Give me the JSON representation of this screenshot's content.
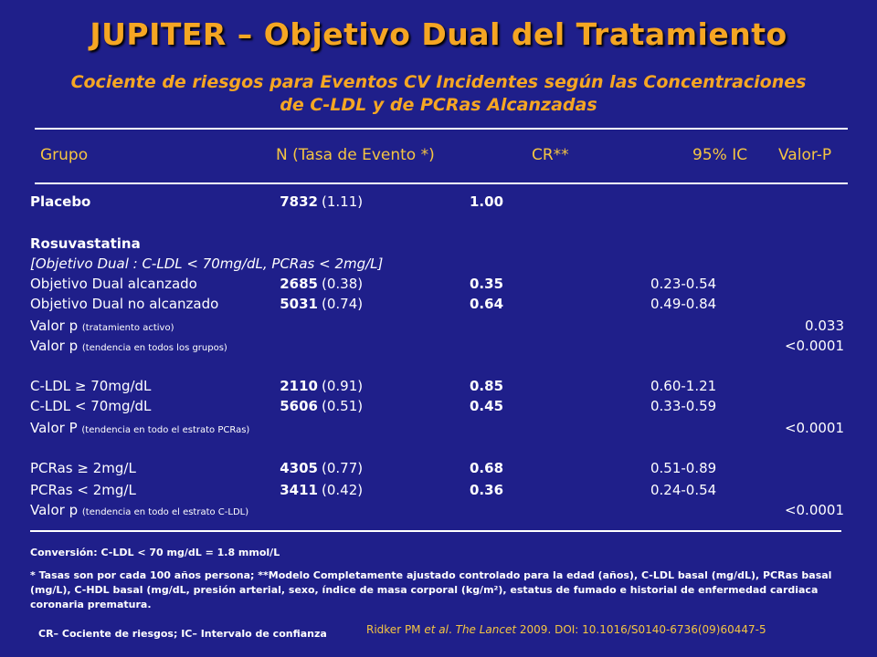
{
  "title": "JUPITER – Objetivo Dual del Tratamiento",
  "subtitle_line1": "Cociente de riesgos para Eventos CV Incidentes según las Concentraciones",
  "subtitle_line2": "de C-LDL y de PCRas Alcanzadas",
  "header": {
    "grupo": "Grupo",
    "n": "N (Tasa de Evento *)",
    "cr": "CR**",
    "ic": "95% IC",
    "p": "Valor-P"
  },
  "rows": {
    "placebo": {
      "group": "Placebo",
      "n": "7832",
      "rate": "(1.11)",
      "hr": "1.00"
    },
    "rosu_title": "Rosuvastatina",
    "rosu_sub": "[Objetivo Dual : C-LDL < 70mg/dL, PCRas < 2mg/L]",
    "dual_ok": {
      "group": "Objetivo Dual alcanzado",
      "n": "2685",
      "rate": "(0.38)",
      "hr": "0.35",
      "ci": "0.23-0.54"
    },
    "dual_no": {
      "group": "Objetivo Dual no alcanzado",
      "n": "5031",
      "rate": "(0.74)",
      "hr": "0.64",
      "ci": "0.49-0.84"
    },
    "p_active": {
      "label": "Valor p",
      "note": "(tratamiento activo)",
      "p": "0.033"
    },
    "p_trend_all": {
      "label": "Valor p",
      "note": "(tendencia en todos los grupos)",
      "p": "<0.0001"
    },
    "ldl_hi": {
      "group": "C-LDL ≥ 70mg/dL",
      "n": "2110",
      "rate": "(0.91)",
      "hr": "0.85",
      "ci": "0.60-1.21"
    },
    "ldl_lo": {
      "group": "C-LDL < 70mg/dL",
      "n": "5606",
      "rate": "(0.51)",
      "hr": "0.45",
      "ci": "0.33-0.59"
    },
    "p_trend_pcr": {
      "label": "Valor P",
      "note": "(tendencia en todo el estrato PCRas)",
      "p": "<0.0001"
    },
    "pcr_hi": {
      "group": "PCRas ≥ 2mg/L",
      "n": "4305",
      "rate": "(0.77)",
      "hr": "0.68",
      "ci": "0.51-0.89"
    },
    "pcr_lo": {
      "group": "PCRas < 2mg/L",
      "n": "3411",
      "rate": "(0.42)",
      "hr": "0.36",
      "ci": "0.24-0.54"
    },
    "p_trend_ldl": {
      "label": "Valor p",
      "note": "(tendencia en todo el estrato C-LDL)",
      "p": "<0.0001"
    }
  },
  "conversion": "Conversión: C-LDL < 70 mg/dL = 1.8 mmol/L",
  "footnote": "* Tasas son por cada 100 años persona; **Modelo Completamente ajustado controlado para la edad (años), C-LDL basal (mg/dL), PCRas basal (mg/L), C-HDL basal (mg/dL, presión arterial, sexo, índice de masa corporal (kg/m²), estatus de fumado e historial de enfermedad cardiaca coronaria prematura.",
  "abbrev": "CR– Cociente de riesgos; IC– Intervalo de confianza",
  "citation": {
    "authors": "Ridker PM",
    "etal": "et al",
    "journal": "The Lancet",
    "rest": "2009. DOI: 10.1016/S0140-6736(09)60447-5"
  },
  "colors": {
    "background": "#1f1f8a",
    "accent": "#f5a623",
    "header_text": "#f5c542",
    "text": "#ffffff"
  }
}
